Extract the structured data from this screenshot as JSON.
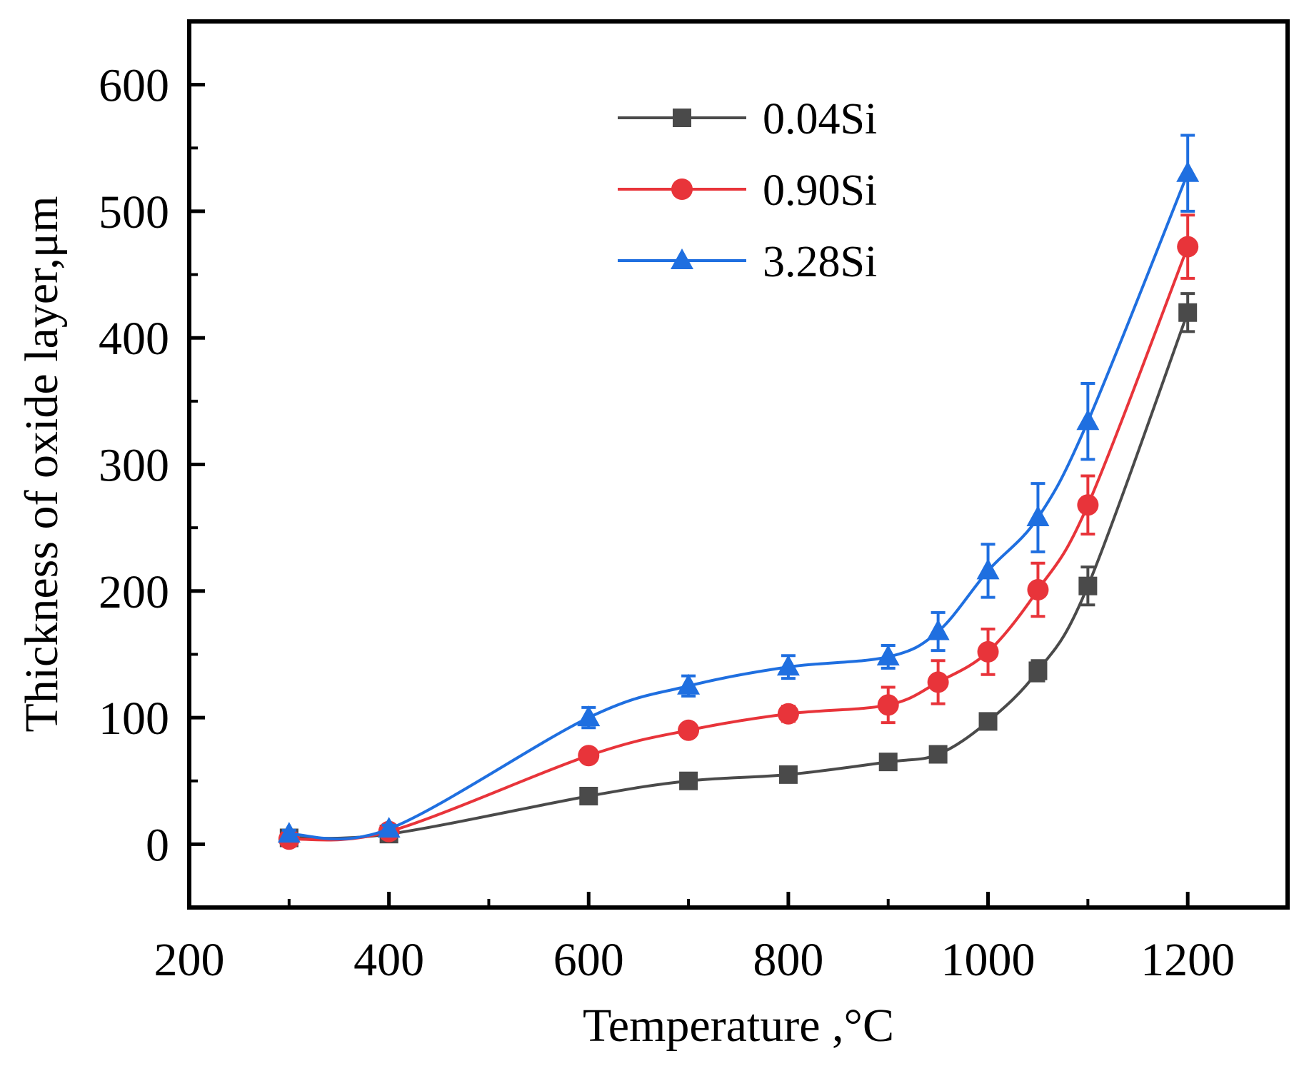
{
  "chart_data": {
    "type": "line",
    "title": "",
    "xlabel": "Temperature ,°C",
    "ylabel": "Thickness of oxide layer,μm",
    "xlim": [
      200,
      1300
    ],
    "ylim": [
      -50,
      650
    ],
    "xticks": [
      200,
      400,
      600,
      800,
      1000,
      1200
    ],
    "xtick_labels": [
      "200",
      "400",
      "600",
      "800",
      "1000",
      "1200"
    ],
    "yticks": [
      0,
      100,
      200,
      300,
      400,
      500,
      600
    ],
    "ytick_labels": [
      "0",
      "100",
      "200",
      "300",
      "400",
      "500",
      "600"
    ],
    "grid": false,
    "legend_position": "top-center",
    "x": [
      300,
      400,
      600,
      700,
      800,
      900,
      950,
      1000,
      1050,
      1100,
      1200
    ],
    "series": [
      {
        "name": "0.04Si",
        "color": "#4a4a4a",
        "marker": "square",
        "values": [
          5,
          8,
          38,
          50,
          55,
          65,
          71,
          97,
          137,
          204,
          420
        ],
        "errors": [
          3,
          3,
          3,
          3,
          3,
          4,
          4,
          6,
          8,
          15,
          15
        ]
      },
      {
        "name": "0.90Si",
        "color": "#e8343a",
        "marker": "circle",
        "values": [
          4,
          10,
          70,
          90,
          103,
          110,
          128,
          152,
          201,
          268,
          472
        ],
        "errors": [
          3,
          3,
          3,
          4,
          6,
          14,
          17,
          18,
          21,
          23,
          25
        ]
      },
      {
        "name": "3.28Si",
        "color": "#1f6fe0",
        "marker": "triangle",
        "values": [
          8,
          12,
          100,
          125,
          140,
          148,
          168,
          216,
          258,
          334,
          530
        ],
        "errors": [
          3,
          3,
          8,
          8,
          9,
          9,
          15,
          21,
          27,
          30,
          30
        ]
      }
    ]
  }
}
